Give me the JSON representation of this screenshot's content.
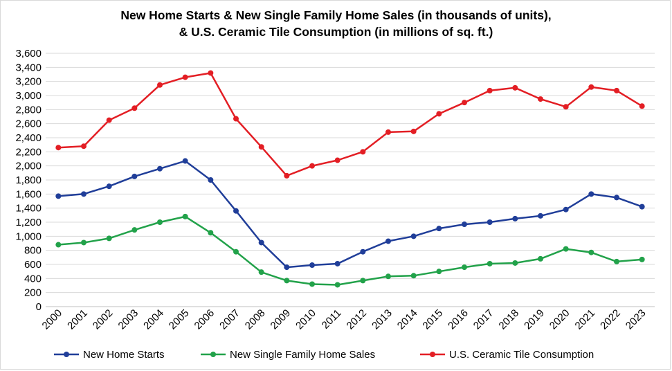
{
  "chart_data": {
    "type": "line",
    "title_line1": "New Home Starts & New Single Family Home Sales (in thousands of units),",
    "title_line2": "& U.S. Ceramic Tile Consumption (in millions of sq. ft.)",
    "xlabel": "",
    "ylabel": "",
    "ylim": [
      0,
      3600
    ],
    "y_ticks": [
      "0",
      "200",
      "400",
      "600",
      "800",
      "1,000",
      "1,200",
      "1,400",
      "1,600",
      "1,800",
      "2,000",
      "2,200",
      "2,400",
      "2,600",
      "2,800",
      "3,000",
      "3,200",
      "3,400",
      "3,600"
    ],
    "y_tick_values": [
      0,
      200,
      400,
      600,
      800,
      1000,
      1200,
      1400,
      1600,
      1800,
      2000,
      2200,
      2400,
      2600,
      2800,
      3000,
      3200,
      3400,
      3600
    ],
    "categories": [
      "2000",
      "2001",
      "2002",
      "2003",
      "2004",
      "2005",
      "2006",
      "2007",
      "2008",
      "2009",
      "2010",
      "2011",
      "2012",
      "2013",
      "2014",
      "2015",
      "2016",
      "2017",
      "2018",
      "2019",
      "2020",
      "2021",
      "2022",
      "2023"
    ],
    "grid": true,
    "legend_position": "bottom",
    "series": [
      {
        "name": "New Home Starts",
        "color": "#203e99",
        "values": [
          1570,
          1600,
          1710,
          1850,
          1960,
          2070,
          1800,
          1360,
          910,
          560,
          590,
          610,
          780,
          930,
          1000,
          1110,
          1170,
          1200,
          1250,
          1290,
          1380,
          1600,
          1550,
          1420
        ]
      },
      {
        "name": "New Single Family Home Sales",
        "color": "#22a24a",
        "values": [
          880,
          910,
          970,
          1090,
          1200,
          1280,
          1050,
          780,
          490,
          370,
          320,
          310,
          370,
          430,
          440,
          500,
          560,
          610,
          620,
          680,
          820,
          770,
          640,
          670
        ]
      },
      {
        "name": "U.S. Ceramic Tile Consumption",
        "color": "#e31e24",
        "values": [
          2260,
          2280,
          2650,
          2820,
          3150,
          3260,
          3320,
          2670,
          2270,
          1860,
          2000,
          2080,
          2200,
          2480,
          2490,
          2740,
          2900,
          3070,
          3110,
          2950,
          2840,
          3120,
          3070,
          2850
        ]
      }
    ]
  },
  "colors": {
    "grid": "#d9d9d9",
    "axis": "#bfbfbf"
  }
}
